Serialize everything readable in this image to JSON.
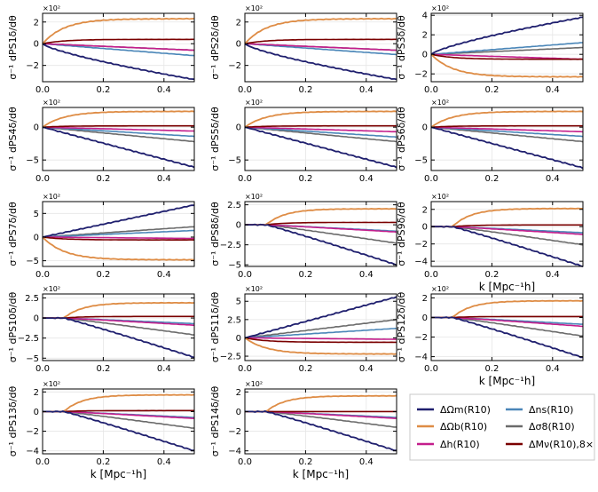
{
  "figure": {
    "x_axis_label": "k [Mpc⁻¹h]",
    "multiplier": "×10²"
  },
  "colors": {
    "dOm": "#1f1f6e",
    "dOb": "#de8c45",
    "dh": "#c41e8c",
    "dns": "#4a86b8",
    "ds8": "#6b6b6b",
    "dMv": "#7a0000"
  },
  "legend": {
    "items": [
      {
        "key": "dOm",
        "label": "ΔΩm(R10)"
      },
      {
        "key": "dns",
        "label": "Δns(R10)"
      },
      {
        "key": "dOb",
        "label": "ΔΩb(R10)"
      },
      {
        "key": "ds8",
        "label": "Δσ8(R10)"
      },
      {
        "key": "dh",
        "label": "Δh(R10)"
      },
      {
        "key": "dMv",
        "label": "ΔMν(R10),8×"
      }
    ]
  },
  "chart_data": [
    {
      "type": "line",
      "ylabel": "σ⁻¹ dPS1δ/dθ",
      "yticks": [
        -2,
        0,
        2
      ],
      "ylim": [
        -3.5,
        2.8
      ],
      "xticks": [
        "0.0",
        "0.2",
        "0.4"
      ],
      "xlim": [
        0,
        0.5
      ],
      "show_xlabel": false,
      "series": [
        {
          "key": "dOm",
          "end": -3.3,
          "shape": "conc"
        },
        {
          "key": "dOb",
          "end": 2.3,
          "shape": "sat"
        },
        {
          "key": "dh",
          "end": -0.6
        },
        {
          "key": "dns",
          "end": -1.1
        },
        {
          "key": "ds8",
          "end": -0.6
        },
        {
          "key": "dMv",
          "end": 0.4,
          "shape": "sat"
        }
      ]
    },
    {
      "type": "line",
      "ylabel": "σ⁻¹ dPS2δ/dθ",
      "yticks": [
        -2,
        0,
        2
      ],
      "ylim": [
        -3.5,
        2.8
      ],
      "xticks": [
        "0.0",
        "0.2",
        "0.4"
      ],
      "xlim": [
        0,
        0.5
      ],
      "show_xlabel": false,
      "series": [
        {
          "key": "dOm",
          "end": -3.3,
          "shape": "conc"
        },
        {
          "key": "dOb",
          "end": 2.3,
          "shape": "sat"
        },
        {
          "key": "dh",
          "end": -0.6
        },
        {
          "key": "dns",
          "end": -1.0
        },
        {
          "key": "ds8",
          "end": -0.6
        },
        {
          "key": "dMv",
          "end": 0.4,
          "shape": "sat"
        }
      ]
    },
    {
      "type": "line",
      "ylabel": "σ⁻¹ dPS3δ/dθ",
      "yticks": [
        -2,
        0,
        2,
        4
      ],
      "ylim": [
        -2.8,
        4.2
      ],
      "xticks": [
        "0.0",
        "0.2",
        "0.4"
      ],
      "xlim": [
        0,
        0.5
      ],
      "show_xlabel": false,
      "series": [
        {
          "key": "dOm",
          "end": 3.8,
          "shape": "conc"
        },
        {
          "key": "dOb",
          "end": -2.3,
          "shape": "sat"
        },
        {
          "key": "dh",
          "end": -0.5
        },
        {
          "key": "dns",
          "end": 1.2
        },
        {
          "key": "ds8",
          "end": 0.7
        },
        {
          "key": "dMv",
          "end": -0.5,
          "shape": "sat"
        }
      ]
    },
    {
      "type": "line",
      "ylabel": "σ⁻¹ dPS4δ/dθ",
      "yticks": [
        -5,
        0
      ],
      "ylim": [
        -6.6,
        3.0
      ],
      "xticks": [
        "0.0",
        "0.2",
        "0.4"
      ],
      "xlim": [
        0,
        0.5
      ],
      "show_xlabel": false,
      "series": [
        {
          "key": "dOm",
          "end": -6.1
        },
        {
          "key": "dOb",
          "end": 2.4,
          "shape": "sat"
        },
        {
          "key": "dh",
          "end": -0.6
        },
        {
          "key": "dns",
          "end": -1.4
        },
        {
          "key": "ds8",
          "end": -2.2
        },
        {
          "key": "dMv",
          "end": 0.2,
          "shape": "sat"
        }
      ]
    },
    {
      "type": "line",
      "ylabel": "σ⁻¹ dPS5δ/dθ",
      "yticks": [
        -5,
        0
      ],
      "ylim": [
        -6.6,
        3.0
      ],
      "xticks": [
        "0.0",
        "0.2",
        "0.4"
      ],
      "xlim": [
        0,
        0.5
      ],
      "show_xlabel": false,
      "series": [
        {
          "key": "dOm",
          "end": -6.1
        },
        {
          "key": "dOb",
          "end": 2.4,
          "shape": "sat"
        },
        {
          "key": "dh",
          "end": -0.7
        },
        {
          "key": "dns",
          "end": -1.5
        },
        {
          "key": "ds8",
          "end": -2.2
        },
        {
          "key": "dMv",
          "end": 0.2,
          "shape": "sat"
        }
      ]
    },
    {
      "type": "line",
      "ylabel": "σ⁻¹ dPS6δ/dθ",
      "yticks": [
        -5,
        0
      ],
      "ylim": [
        -6.6,
        3.0
      ],
      "xticks": [
        "0.0",
        "0.2",
        "0.4"
      ],
      "xlim": [
        0,
        0.5
      ],
      "show_xlabel": false,
      "series": [
        {
          "key": "dOm",
          "end": -6.2
        },
        {
          "key": "dOb",
          "end": 2.4,
          "shape": "sat"
        },
        {
          "key": "dh",
          "end": -0.7
        },
        {
          "key": "dns",
          "end": -1.4
        },
        {
          "key": "ds8",
          "end": -2.2
        },
        {
          "key": "dMv",
          "end": 0.2,
          "shape": "sat"
        }
      ]
    },
    {
      "type": "line",
      "ylabel": "σ⁻¹ dPS7δ/dθ",
      "yticks": [
        -5,
        0,
        5
      ],
      "ylim": [
        -6.2,
        7.5
      ],
      "xticks": [
        "0.0",
        "0.2",
        "0.4"
      ],
      "xlim": [
        0,
        0.5
      ],
      "show_xlabel": false,
      "series": [
        {
          "key": "dOm",
          "end": 6.8
        },
        {
          "key": "dOb",
          "end": -4.8,
          "shape": "sat"
        },
        {
          "key": "dh",
          "end": -0.3
        },
        {
          "key": "dns",
          "end": 1.4
        },
        {
          "key": "ds8",
          "end": 2.2
        },
        {
          "key": "dMv",
          "end": -0.6,
          "shape": "sat"
        }
      ]
    },
    {
      "type": "line",
      "ylabel": "σ⁻¹ dPS8δ/dθ",
      "yticks": [
        -5.0,
        -2.5,
        0.0,
        2.5
      ],
      "ylim": [
        -5.2,
        2.9
      ],
      "xticks": [
        "0.0",
        "0.2",
        "0.4"
      ],
      "xlim": [
        0,
        0.5
      ],
      "show_xlabel": false,
      "series": [
        {
          "key": "dOm",
          "end": -5.0,
          "shape": "delay"
        },
        {
          "key": "dOb",
          "end": 2.0,
          "shape": "delaysat"
        },
        {
          "key": "dh",
          "end": -0.9,
          "shape": "delay"
        },
        {
          "key": "dns",
          "end": -0.8,
          "shape": "delay"
        },
        {
          "key": "ds8",
          "end": -2.3,
          "shape": "delay"
        },
        {
          "key": "dMv",
          "end": 0.3,
          "shape": "delaysat"
        }
      ]
    },
    {
      "type": "line",
      "ylabel": "σ⁻¹ dPS9δ/dθ",
      "yticks": [
        -4,
        -2,
        0,
        2
      ],
      "ylim": [
        -4.6,
        2.9
      ],
      "xticks": [
        "0.0",
        "0.2",
        "0.4"
      ],
      "xlim": [
        0,
        0.5
      ],
      "show_xlabel": true,
      "series": [
        {
          "key": "dOm",
          "end": -4.6,
          "shape": "delay"
        },
        {
          "key": "dOb",
          "end": 2.1,
          "shape": "delaysat"
        },
        {
          "key": "dh",
          "end": -0.9,
          "shape": "delay"
        },
        {
          "key": "dns",
          "end": -0.7,
          "shape": "delay"
        },
        {
          "key": "ds8",
          "end": -2.1,
          "shape": "delay"
        },
        {
          "key": "dMv",
          "end": 0.2,
          "shape": "delaysat"
        }
      ]
    },
    {
      "type": "line",
      "ylabel": "σ⁻¹ dPS10δ/dθ",
      "yticks": [
        -5.0,
        -2.5,
        0.0,
        2.5
      ],
      "ylim": [
        -5.3,
        3.0
      ],
      "xticks": [
        "0.0",
        "0.2",
        "0.4"
      ],
      "xlim": [
        0,
        0.5
      ],
      "show_xlabel": false,
      "series": [
        {
          "key": "dOm",
          "end": -4.9,
          "shape": "delay"
        },
        {
          "key": "dOb",
          "end": 1.9,
          "shape": "delaysat"
        },
        {
          "key": "dh",
          "end": -0.9,
          "shape": "delay"
        },
        {
          "key": "dns",
          "end": -0.7,
          "shape": "delay"
        },
        {
          "key": "ds8",
          "end": -2.1,
          "shape": "delay"
        },
        {
          "key": "dMv",
          "end": 0.2,
          "shape": "delaysat"
        }
      ]
    },
    {
      "type": "line",
      "ylabel": "σ⁻¹ dPS11δ/dθ",
      "yticks": [
        -2.5,
        0.0,
        2.5,
        5.0
      ],
      "ylim": [
        -3.1,
        6.0
      ],
      "xticks": [
        "0.0",
        "0.2",
        "0.4"
      ],
      "xlim": [
        0,
        0.5
      ],
      "show_xlabel": false,
      "series": [
        {
          "key": "dOm",
          "end": 5.6
        },
        {
          "key": "dOb",
          "end": -2.2,
          "shape": "sat"
        },
        {
          "key": "dh",
          "end": -0.2
        },
        {
          "key": "dns",
          "end": 1.3
        },
        {
          "key": "ds8",
          "end": 2.5
        },
        {
          "key": "dMv",
          "end": -0.6,
          "shape": "sat"
        }
      ]
    },
    {
      "type": "line",
      "ylabel": "σ⁻¹ dPS12δ/dθ",
      "yticks": [
        -4,
        -2,
        0,
        2
      ],
      "ylim": [
        -4.4,
        2.4
      ],
      "xticks": [
        "0.0",
        "0.2",
        "0.4"
      ],
      "xlim": [
        0,
        0.5
      ],
      "show_xlabel": true,
      "series": [
        {
          "key": "dOm",
          "end": -4.1,
          "shape": "delay"
        },
        {
          "key": "dOb",
          "end": 1.7,
          "shape": "delaysat"
        },
        {
          "key": "dh",
          "end": -0.9,
          "shape": "delay"
        },
        {
          "key": "dns",
          "end": -0.7,
          "shape": "delay"
        },
        {
          "key": "ds8",
          "end": -1.9,
          "shape": "delay"
        },
        {
          "key": "dMv",
          "end": 0.1,
          "shape": "delaysat"
        }
      ]
    },
    {
      "type": "line",
      "ylabel": "σ⁻¹ dPS13δ/dθ",
      "yticks": [
        -4,
        -2,
        0,
        2
      ],
      "ylim": [
        -4.3,
        2.3
      ],
      "xticks": [
        "0.0",
        "0.2",
        "0.4"
      ],
      "xlim": [
        0,
        0.5
      ],
      "show_xlabel": true,
      "series": [
        {
          "key": "dOm",
          "end": -4.0,
          "shape": "delay"
        },
        {
          "key": "dOb",
          "end": 1.7,
          "shape": "delaysat"
        },
        {
          "key": "dh",
          "end": -0.7,
          "shape": "delay"
        },
        {
          "key": "dns",
          "end": -0.6,
          "shape": "delay"
        },
        {
          "key": "ds8",
          "end": -1.7,
          "shape": "delay"
        },
        {
          "key": "dMv",
          "end": 0.1,
          "shape": "delaysat"
        }
      ]
    },
    {
      "type": "line",
      "ylabel": "σ⁻¹ dPS14δ/dθ",
      "yticks": [
        -4,
        -2,
        0,
        2
      ],
      "ylim": [
        -4.3,
        2.3
      ],
      "xticks": [
        "0.0",
        "0.2",
        "0.4"
      ],
      "xlim": [
        0,
        0.5
      ],
      "show_xlabel": true,
      "series": [
        {
          "key": "dOm",
          "end": -4.0,
          "shape": "delay"
        },
        {
          "key": "dOb",
          "end": 1.6,
          "shape": "delaysat"
        },
        {
          "key": "dh",
          "end": -0.7,
          "shape": "delay"
        },
        {
          "key": "dns",
          "end": -0.6,
          "shape": "delay"
        },
        {
          "key": "ds8",
          "end": -1.6,
          "shape": "delay"
        },
        {
          "key": "dMv",
          "end": 0.0,
          "shape": "delaysat"
        }
      ]
    }
  ]
}
